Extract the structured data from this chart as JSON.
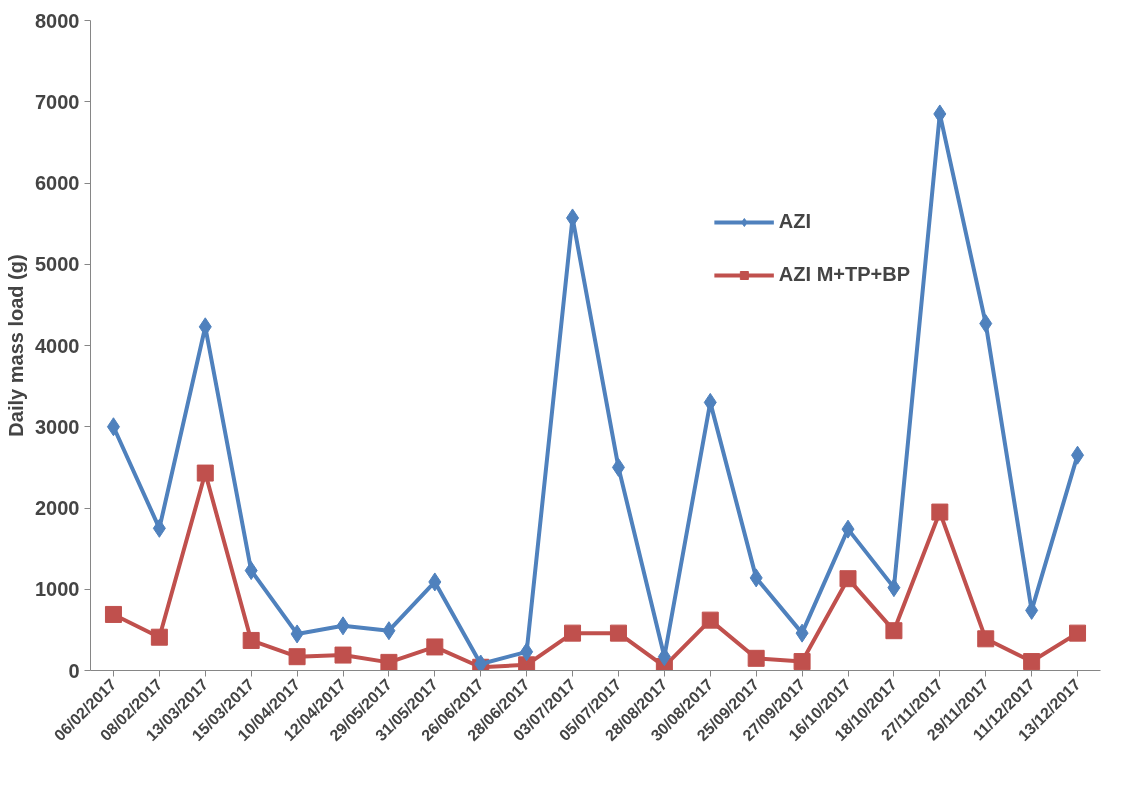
{
  "chart_data": {
    "type": "line",
    "ylabel": "Daily mass load (g)",
    "categories": [
      "06/02/2017",
      "08/02/2017",
      "13/03/2017",
      "15/03/2017",
      "10/04/2017",
      "12/04/2017",
      "29/05/2017",
      "31/05/2017",
      "26/06/2017",
      "28/06/2017",
      "03/07/2017",
      "05/07/2017",
      "28/08/2017",
      "30/08/2017",
      "25/09/2017",
      "27/09/2017",
      "16/10/2017",
      "18/10/2017",
      "27/11/2017",
      "29/11/2017",
      "11/12/2017",
      "13/12/2017"
    ],
    "series": [
      {
        "name": "AZI",
        "color": "#4f81bd",
        "marker": "diamond",
        "values": [
          3000,
          1750,
          4230,
          1230,
          450,
          550,
          490,
          1090,
          80,
          230,
          5570,
          2500,
          170,
          3300,
          1140,
          460,
          1740,
          1020,
          6850,
          4270,
          740,
          2650
        ]
      },
      {
        "name": "AZI M+TP+BP",
        "color": "#c0504d",
        "marker": "square",
        "values": [
          690,
          410,
          2430,
          370,
          170,
          190,
          100,
          290,
          40,
          70,
          460,
          460,
          50,
          620,
          150,
          110,
          1130,
          490,
          1950,
          390,
          110,
          460
        ]
      }
    ],
    "ylim": [
      0,
      8000
    ],
    "yticks": [
      0,
      1000,
      2000,
      3000,
      4000,
      5000,
      6000,
      7000,
      8000
    ],
    "grid": false,
    "legend": "top right",
    "line_style": "solid"
  }
}
